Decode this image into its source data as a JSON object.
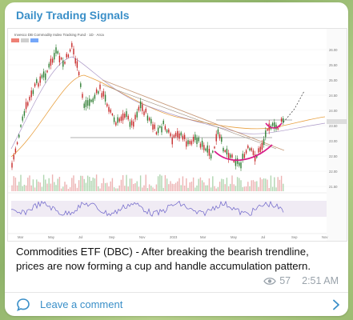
{
  "channel": {
    "name": "Daily Trading Signals"
  },
  "chart": {
    "header_text": "Invesco DB Commodity Index Tracking Fund · 1D · Arca",
    "price_labels": [
      "26.00",
      "25.50",
      "25.00",
      "24.50",
      "24.00",
      "23.50",
      "23.00",
      "22.50",
      "22.00",
      "21.50"
    ],
    "time_labels": [
      "Mar",
      "May",
      "Jul",
      "Sep",
      "Nov",
      "2023",
      "Mar",
      "May",
      "Jul",
      "Sep",
      "Nov"
    ],
    "colors": {
      "trendline": "#c79a7a",
      "cup": "#d81b8a",
      "price": "#222222",
      "rsi_band": "#e9e3f0",
      "rsi_line": "#6b62c9"
    }
  },
  "post": {
    "caption": "Commodities ETF (DBC) - After breaking the bearish trendline, prices are now forming a cup and handle accumulation pattern.",
    "views": "57",
    "time": "2:51 AM"
  },
  "comments": {
    "label": "Leave a comment"
  }
}
